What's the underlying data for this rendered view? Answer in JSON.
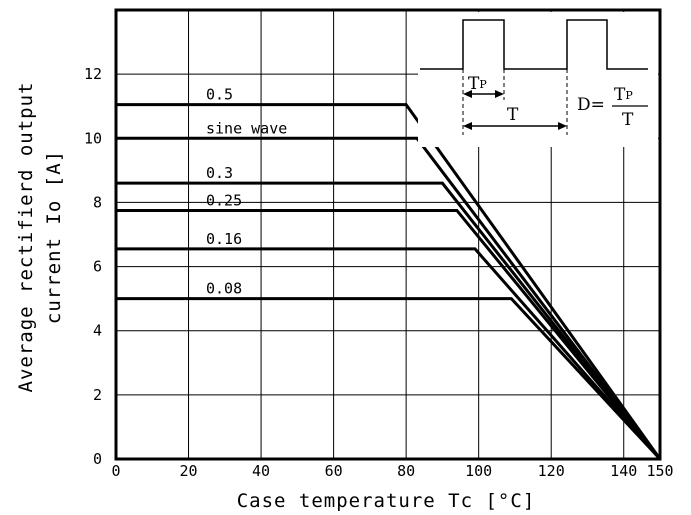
{
  "chart_data": {
    "type": "line",
    "xlabel": "Case temperature Tc [°C]",
    "ylabel_line1": "Average rectifierd output",
    "ylabel_line2": "current Io [A]",
    "xlim": [
      0,
      150
    ],
    "ylim": [
      0,
      14
    ],
    "x_ticks": [
      0,
      20,
      40,
      60,
      80,
      100,
      120,
      140,
      150
    ],
    "x_tick_labels": [
      "0",
      "20",
      "40",
      "60",
      "80",
      "100",
      "120",
      "140",
      "150"
    ],
    "y_ticks": [
      0,
      2,
      4,
      6,
      8,
      10,
      12
    ],
    "y_tick_labels": [
      "0",
      "2",
      "4",
      "6",
      "8",
      "10",
      "12"
    ],
    "grid": true,
    "series": [
      {
        "name": "0.5",
        "x": [
          0,
          80,
          150
        ],
        "y": [
          11.05,
          11.05,
          0
        ]
      },
      {
        "name": "sine wave",
        "x": [
          0,
          83,
          150
        ],
        "y": [
          10.0,
          10.0,
          0
        ]
      },
      {
        "name": "0.3",
        "x": [
          0,
          90,
          150
        ],
        "y": [
          8.6,
          8.6,
          0
        ]
      },
      {
        "name": "0.25",
        "x": [
          0,
          94,
          150
        ],
        "y": [
          7.75,
          7.75,
          0
        ]
      },
      {
        "name": "0.16",
        "x": [
          0,
          99,
          150
        ],
        "y": [
          6.55,
          6.55,
          0
        ]
      },
      {
        "name": "0.08",
        "x": [
          0,
          109,
          150
        ],
        "y": [
          5.0,
          5.0,
          0
        ]
      }
    ],
    "inset": {
      "tp_label": "T",
      "tp_sub": "P",
      "t_label": "T",
      "d_label": "D=",
      "d_num": "T",
      "d_num_sub": "P",
      "d_den": "T"
    }
  }
}
